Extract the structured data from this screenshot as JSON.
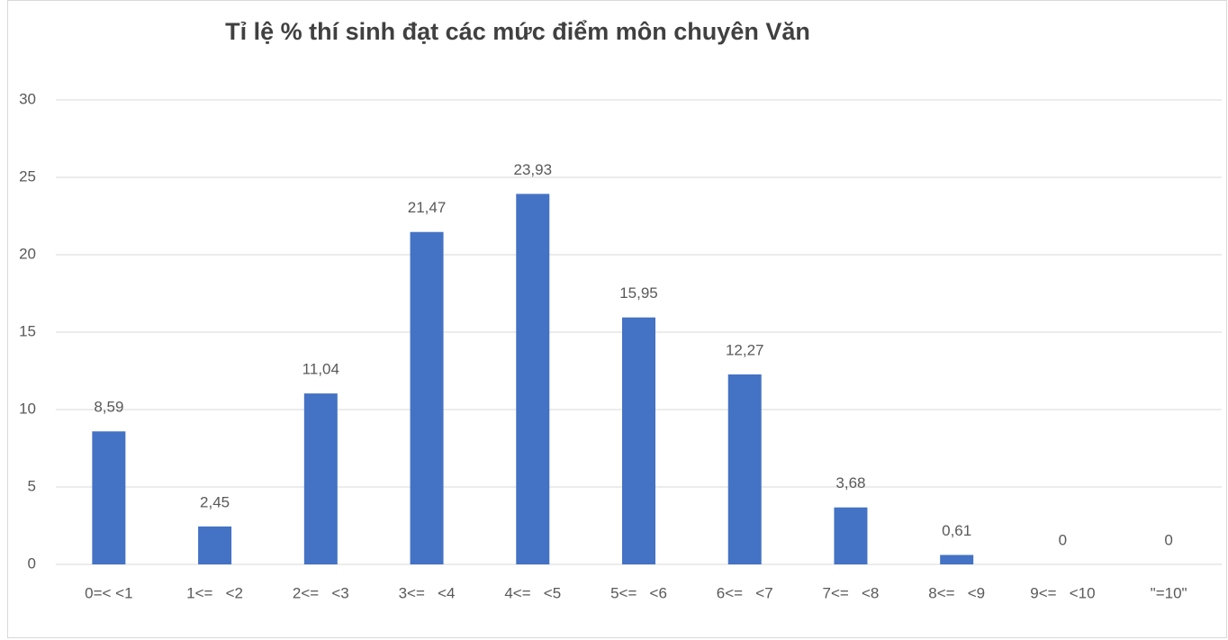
{
  "chart_data": {
    "type": "bar",
    "title": "Tỉ lệ % thí sinh đạt các mức điểm môn chuyên Văn",
    "categories": [
      "0=< <1",
      "1<=   <2",
      "2<=   <3",
      "3<=   <4",
      "4<=   <5",
      "5<=   <6",
      "6<=   <7",
      "7<=   <8",
      "8<=   <9",
      "9<=   <10",
      "\"=10\""
    ],
    "values": [
      8.59,
      2.45,
      11.04,
      21.47,
      23.93,
      15.95,
      12.27,
      3.68,
      0.61,
      0,
      0
    ],
    "value_labels": [
      "8,59",
      "2,45",
      "11,04",
      "21,47",
      "23,93",
      "15,95",
      "12,27",
      "3,68",
      "0,61",
      "0",
      "0"
    ],
    "color": "#4472c4",
    "ylim": [
      0,
      30
    ],
    "yticks": [
      0,
      5,
      10,
      15,
      20,
      25,
      30
    ],
    "grid": true
  }
}
